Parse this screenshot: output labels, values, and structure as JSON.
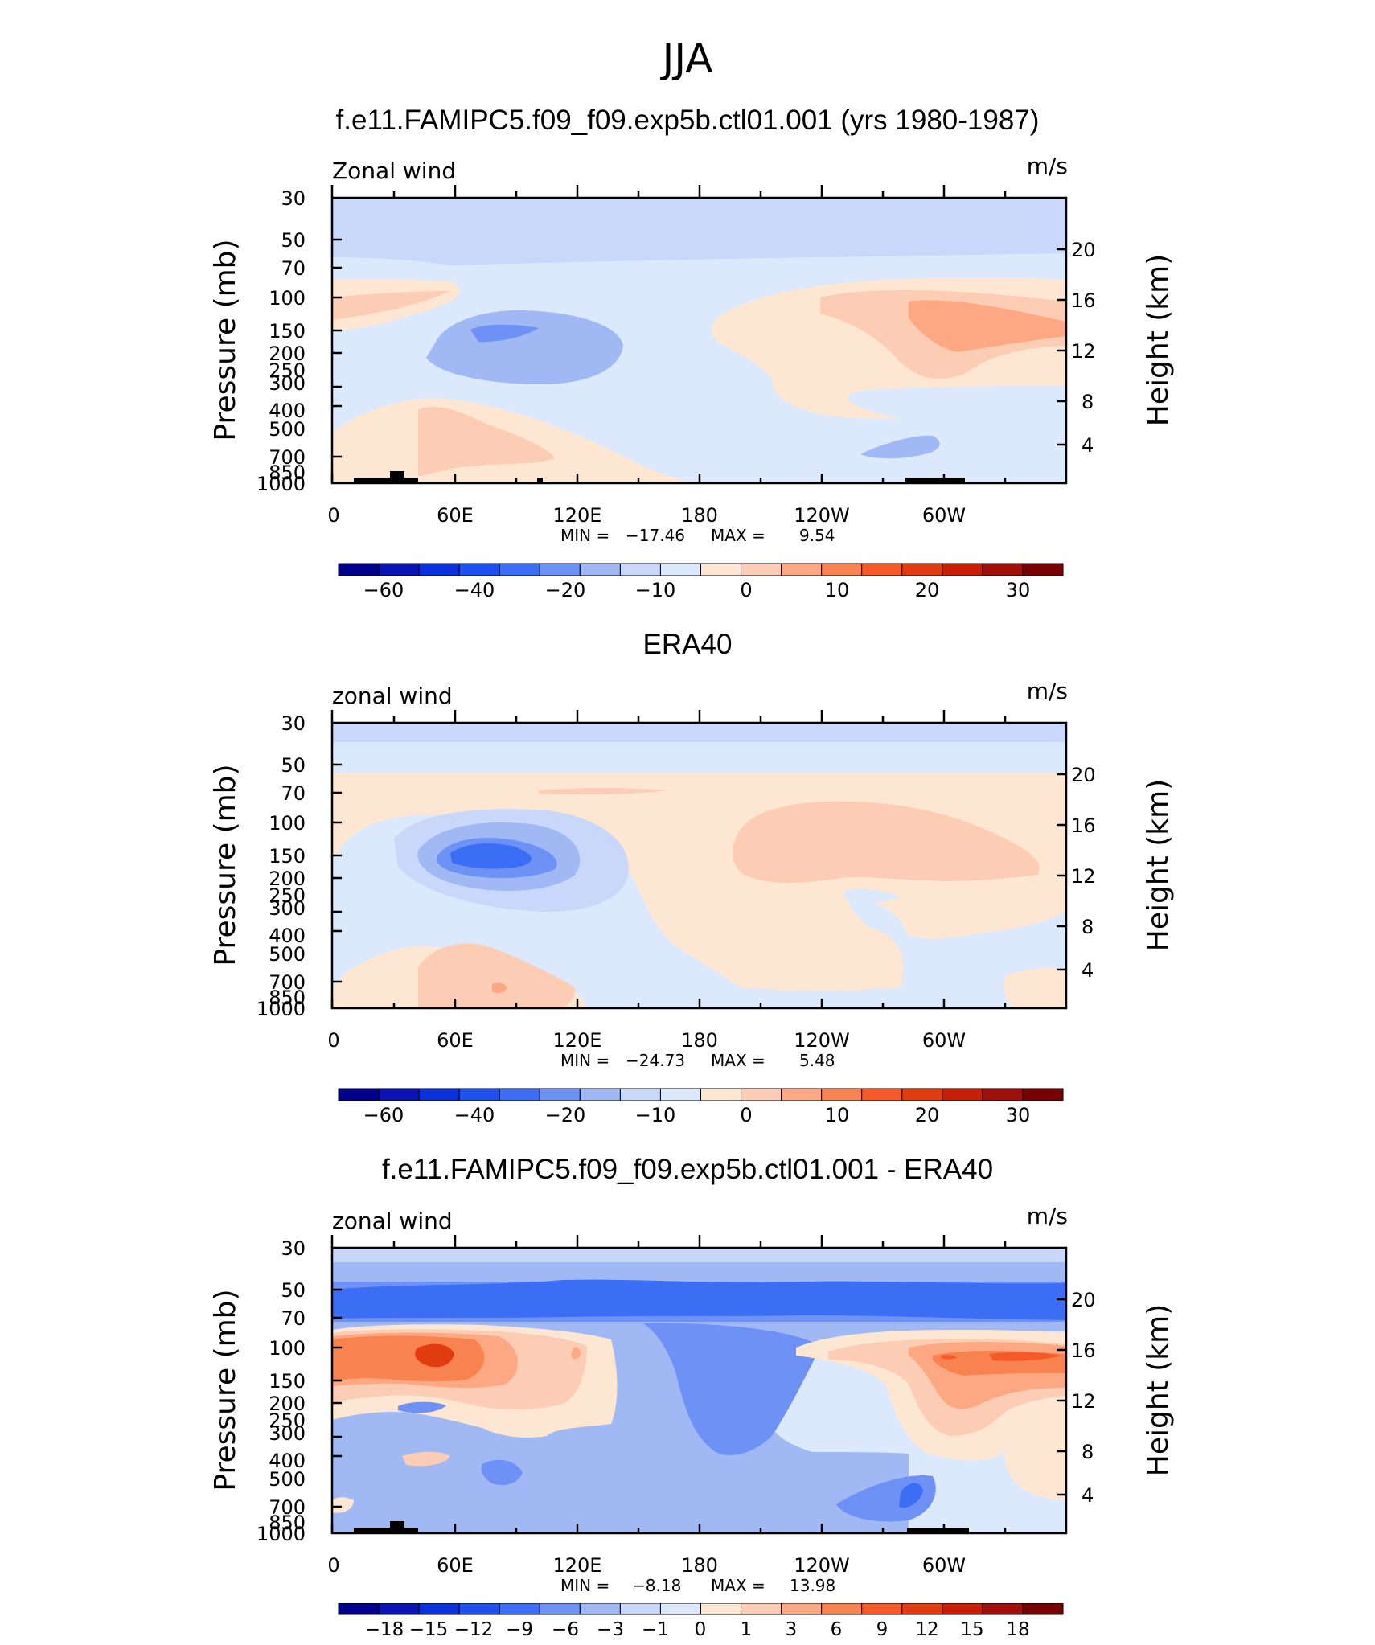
{
  "title": "JJA",
  "colors": {
    "blue_scale": [
      "#00008c",
      "#0a14b4",
      "#0a32dc",
      "#1e50f0",
      "#3c6ef5",
      "#6e91f5",
      "#a0b9f5",
      "#c8d7fa",
      "#dce9fc"
    ],
    "red_scale": [
      "#fde6d2",
      "#fdccb4",
      "#fca882",
      "#f88250",
      "#f55a28",
      "#e13c0f",
      "#c81e05",
      "#a00f0a",
      "#780000"
    ],
    "land": "#000000"
  },
  "chart_data": [
    {
      "type": "heatmap",
      "title": "f.e11.FAMIPC5.f09_f09.exp5b.ctl01.001 (yrs 1980-1987)",
      "left_string": "Zonal wind",
      "right_string": "m/s",
      "ylabel": "Pressure (mb)",
      "ylabel_right": "Height (km)",
      "xticks": [
        "0",
        "60E",
        "120E",
        "180",
        "120W",
        "60W"
      ],
      "yticks": [
        "30",
        "50",
        "70",
        "100",
        "150",
        "200",
        "250",
        "300",
        "400",
        "500",
        "700",
        "850",
        "1000"
      ],
      "yticks_right": [
        "20",
        "16",
        "12",
        "8",
        "4"
      ],
      "min_label": "MIN =",
      "min_value": "−17.46",
      "max_label": "MAX =",
      "max_value": "9.54",
      "colorbar_labels": [
        "−60",
        "−40",
        "−20",
        "−10",
        "0",
        "10",
        "20",
        "30"
      ],
      "min": -17.46,
      "max": 9.54
    },
    {
      "type": "heatmap",
      "title": "ERA40",
      "left_string": "zonal wind",
      "right_string": "m/s",
      "ylabel": "Pressure (mb)",
      "ylabel_right": "Height (km)",
      "xticks": [
        "0",
        "60E",
        "120E",
        "180",
        "120W",
        "60W"
      ],
      "yticks": [
        "30",
        "50",
        "70",
        "100",
        "150",
        "200",
        "250",
        "300",
        "400",
        "500",
        "700",
        "850",
        "1000"
      ],
      "yticks_right": [
        "20",
        "16",
        "12",
        "8",
        "4"
      ],
      "min_label": "MIN =",
      "min_value": "−24.73",
      "max_label": "MAX =",
      "max_value": "5.48",
      "colorbar_labels": [
        "−60",
        "−40",
        "−20",
        "−10",
        "0",
        "10",
        "20",
        "30"
      ],
      "min": -24.73,
      "max": 5.48
    },
    {
      "type": "heatmap",
      "title": "f.e11.FAMIPC5.f09_f09.exp5b.ctl01.001 - ERA40",
      "left_string": "zonal wind",
      "right_string": "m/s",
      "ylabel": "Pressure (mb)",
      "ylabel_right": "Height (km)",
      "xticks": [
        "0",
        "60E",
        "120E",
        "180",
        "120W",
        "60W"
      ],
      "yticks": [
        "30",
        "50",
        "70",
        "100",
        "150",
        "200",
        "250",
        "300",
        "400",
        "500",
        "700",
        "850",
        "1000"
      ],
      "yticks_right": [
        "20",
        "16",
        "12",
        "8",
        "4"
      ],
      "min_label": "MIN =",
      "min_value": "−8.18",
      "max_label": "MAX =",
      "max_value": "13.98",
      "colorbar_labels": [
        "−18",
        "−15",
        "−12",
        "−9",
        "−6",
        "−3",
        "−1",
        "0",
        "1",
        "3",
        "6",
        "9",
        "12",
        "15",
        "18"
      ],
      "min": -8.18,
      "max": 13.98
    }
  ]
}
